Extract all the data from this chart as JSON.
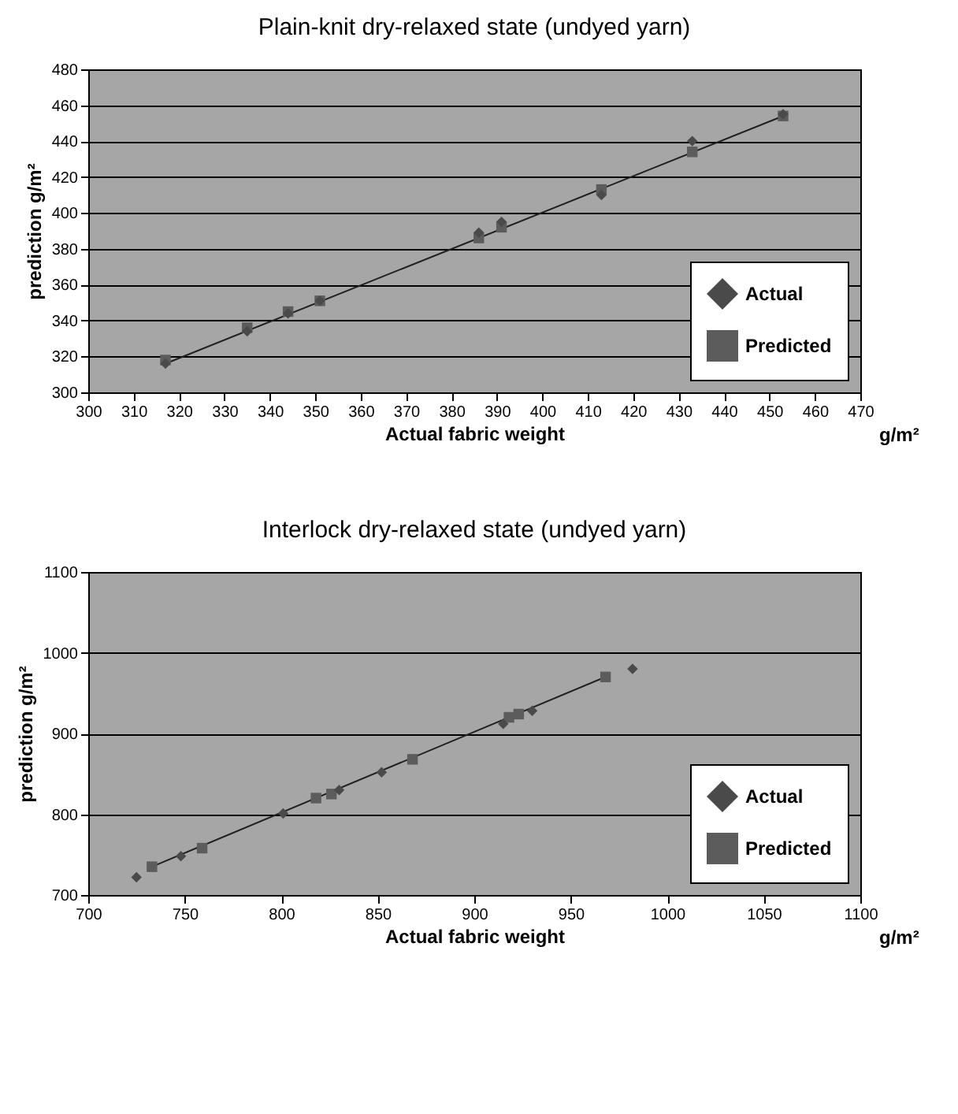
{
  "chart_data": [
    {
      "type": "scatter",
      "title": "Plain-knit dry-relaxed state (undyed yarn)",
      "xlabel": "Actual fabric weight",
      "ylabel": "prediction  g/m²",
      "annotations": [
        "g/m²"
      ],
      "xlim": [
        300,
        470
      ],
      "xticks": [
        300,
        310,
        320,
        330,
        340,
        350,
        360,
        370,
        380,
        390,
        400,
        410,
        420,
        430,
        440,
        450,
        460,
        470
      ],
      "ylim": [
        300,
        480
      ],
      "yticks": [
        300,
        320,
        340,
        360,
        380,
        400,
        420,
        440,
        460,
        480
      ],
      "grid": "y",
      "legend": "bottom right",
      "series": [
        {
          "name": "Actual",
          "color": "#4a4a4a",
          "marker": "diamond",
          "x": [
            317,
            335,
            344,
            351,
            386,
            391,
            413,
            433,
            453
          ],
          "values": [
            316,
            334,
            344,
            351,
            389,
            395,
            410,
            440,
            455
          ]
        },
        {
          "name": "Predicted",
          "color": "#5c5c5c",
          "marker": "square",
          "x": [
            317,
            335,
            344,
            351,
            386,
            391,
            413,
            433,
            453
          ],
          "values": [
            318,
            336,
            345,
            351,
            386,
            392,
            413,
            434,
            454
          ]
        },
        {
          "type": "line",
          "color": "#202020",
          "x": [
            318,
            453
          ],
          "values": [
            317,
            454
          ]
        }
      ]
    },
    {
      "type": "scatter",
      "title": "Interlock dry-relaxed state (undyed yarn)",
      "xlabel": "Actual fabric weight",
      "ylabel": "prediction  g/m²",
      "annotations": [
        "g/m²"
      ],
      "xlim": [
        700,
        1100
      ],
      "xticks": [
        700,
        750,
        800,
        850,
        900,
        950,
        1000,
        1050,
        1100
      ],
      "ylim": [
        700,
        1100
      ],
      "yticks": [
        700,
        800,
        900,
        1000,
        1100
      ],
      "grid": "y",
      "legend": "bottom right",
      "series": [
        {
          "name": "Actual",
          "color": "#4a4a4a",
          "marker": "diamond",
          "x": [
            725,
            748,
            801,
            830,
            852,
            915,
            930,
            982
          ],
          "values": [
            722,
            748,
            801,
            830,
            852,
            912,
            928,
            980
          ]
        },
        {
          "name": "Predicted",
          "color": "#5c5c5c",
          "marker": "square",
          "x": [
            733,
            759,
            818,
            826,
            868,
            918,
            923,
            968
          ],
          "values": [
            735,
            758,
            820,
            825,
            868,
            920,
            924,
            970
          ]
        },
        {
          "type": "line",
          "color": "#202020",
          "x": [
            733,
            968
          ],
          "values": [
            735,
            970
          ]
        }
      ]
    }
  ]
}
